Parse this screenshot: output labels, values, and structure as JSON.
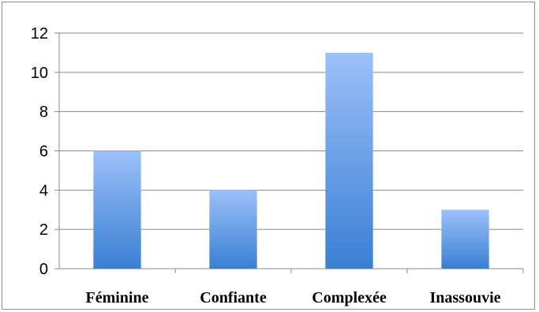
{
  "chart_data": {
    "type": "bar",
    "categories": [
      "Féminine",
      "Confiante",
      "Complexée",
      "Inassouvie"
    ],
    "values": [
      6,
      4,
      11,
      3
    ],
    "title": "",
    "xlabel": "",
    "ylabel": "",
    "ylim": [
      0,
      12
    ],
    "yticks": [
      "0",
      "2",
      "4",
      "6",
      "8",
      "10",
      "12"
    ],
    "grid": true,
    "legend": "none",
    "colors": {
      "bar_top": "#9cc0f9",
      "bar_bottom": "#3a7fd4",
      "grid": "#8a8a8a"
    }
  }
}
